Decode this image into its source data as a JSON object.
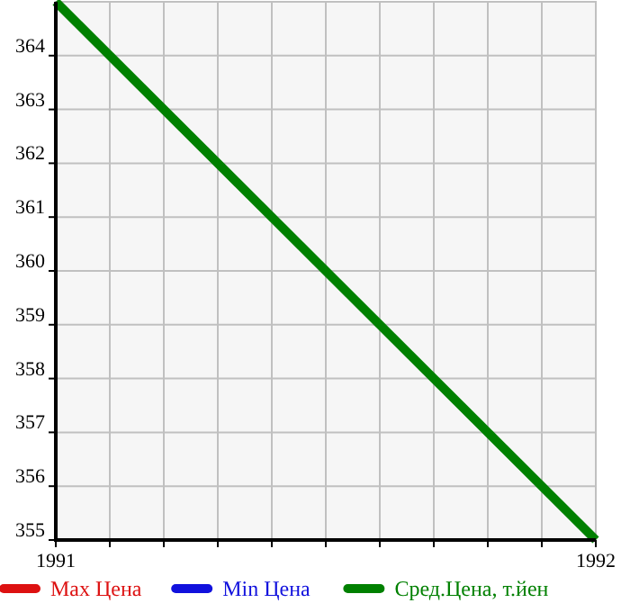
{
  "chart_data": {
    "type": "line",
    "x": [
      1991,
      1992
    ],
    "xlim": [
      1991,
      1992
    ],
    "xticks": [
      1991,
      {
        "value": 1991.1,
        "label": null
      },
      {
        "value": 1991.2,
        "label": null
      },
      {
        "value": 1991.3,
        "label": null
      },
      {
        "value": 1991.4,
        "label": null
      },
      {
        "value": 1991.5,
        "label": null
      },
      {
        "value": 1991.6,
        "label": null
      },
      {
        "value": 1991.7,
        "label": null
      },
      {
        "value": 1991.8,
        "label": null
      },
      {
        "value": 1991.9,
        "label": null
      },
      1992
    ],
    "ylim": [
      355,
      365
    ],
    "yticks": [
      355,
      356,
      357,
      358,
      359,
      360,
      361,
      362,
      363,
      364
    ],
    "grid": true,
    "legend": "bottom",
    "series": [
      {
        "name": "Max Цена",
        "color": "#dd1111",
        "values": [
          null,
          null
        ]
      },
      {
        "name": "Min Цена",
        "color": "#1111dd",
        "values": [
          null,
          null
        ]
      },
      {
        "name": "Сред.Цена, т.йен",
        "color": "#008000",
        "values": [
          365,
          355
        ]
      }
    ]
  }
}
